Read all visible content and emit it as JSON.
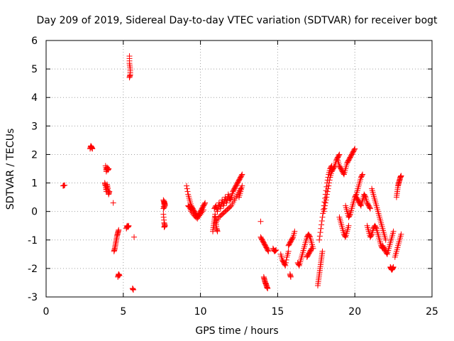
{
  "chart_data": {
    "type": "scatter",
    "title": "Day 209 of 2019, Sidereal Day-to-day VTEC variation (SDTVAR) for receiver bogt",
    "xlabel": "GPS time / hours",
    "ylabel": "SDTVAR / TECUs",
    "xlim": [
      0,
      25
    ],
    "ylim": [
      -3,
      6
    ],
    "xticks": [
      0,
      5,
      10,
      15,
      20,
      25
    ],
    "yticks": [
      -3,
      -2,
      -1,
      0,
      1,
      2,
      3,
      4,
      5,
      6
    ],
    "grid": true,
    "marker": "+",
    "series_color": "#ff0000",
    "segments": [
      {
        "x": [
          1.1,
          1.2
        ],
        "y": [
          0.9,
          0.92
        ]
      },
      {
        "x": [
          2.85,
          2.9,
          2.95,
          3.0
        ],
        "y": [
          2.2,
          2.3,
          2.25,
          2.2
        ]
      },
      {
        "x": [
          3.85,
          3.9,
          3.95,
          4.0,
          4.05
        ],
        "y": [
          1.6,
          1.4,
          1.55,
          1.45,
          1.5
        ]
      },
      {
        "x": [
          3.8,
          3.85,
          3.9,
          3.95,
          4.0,
          4.05,
          4.1
        ],
        "y": [
          1.0,
          0.9,
          0.7,
          0.95,
          0.8,
          0.6,
          0.7
        ]
      },
      {
        "x": [
          4.35
        ],
        "y": [
          0.3
        ]
      },
      {
        "x": [
          4.4,
          4.45,
          4.5,
          4.55,
          4.6,
          4.65,
          4.7
        ],
        "y": [
          -1.4,
          -1.3,
          -1.15,
          -1.0,
          -0.85,
          -0.75,
          -0.65
        ]
      },
      {
        "x": [
          4.65,
          4.7,
          4.75
        ],
        "y": [
          -2.3,
          -2.2,
          -2.25
        ]
      },
      {
        "x": [
          5.2,
          5.25,
          5.3,
          5.35
        ],
        "y": [
          -0.6,
          -0.5,
          -0.55,
          -0.5
        ]
      },
      {
        "x": [
          5.4,
          5.4,
          5.45,
          5.45,
          5.4
        ],
        "y": [
          5.45,
          5.2,
          5.0,
          4.8,
          4.7
        ]
      },
      {
        "x": [
          5.7
        ],
        "y": [
          -0.9
        ]
      },
      {
        "x": [
          5.6,
          5.65
        ],
        "y": [
          -2.7,
          -2.75
        ]
      },
      {
        "x": [
          7.6,
          7.65,
          7.7,
          7.6,
          7.65,
          7.7
        ],
        "y": [
          0.4,
          0.3,
          0.2,
          0.1,
          0.35,
          0.25
        ]
      },
      {
        "x": [
          7.6,
          7.65,
          7.7,
          7.65
        ],
        "y": [
          -0.1,
          -0.4,
          -0.5,
          -0.55
        ]
      },
      {
        "x": [
          9.1,
          9.2,
          9.3,
          9.4,
          9.5,
          9.6,
          9.7,
          9.8,
          9.9,
          10.0,
          10.1,
          10.2,
          10.3
        ],
        "y": [
          0.9,
          0.6,
          0.4,
          0.2,
          0.1,
          0.0,
          -0.1,
          -0.2,
          -0.1,
          0.0,
          0.1,
          0.2,
          0.3
        ]
      },
      {
        "x": [
          9.2,
          9.3,
          9.4,
          9.6,
          9.8,
          10.0,
          10.2
        ],
        "y": [
          0.2,
          0.15,
          0.0,
          -0.15,
          -0.25,
          -0.1,
          0.05
        ]
      },
      {
        "x": [
          10.8,
          10.85,
          10.9,
          10.95,
          11.0,
          11.05,
          11.1
        ],
        "y": [
          -0.7,
          -0.5,
          -0.3,
          -0.1,
          -0.4,
          -0.6,
          -0.7
        ]
      },
      {
        "x": [
          10.9,
          11.0,
          11.1,
          11.2,
          11.3,
          11.4,
          11.5,
          11.6,
          11.7,
          11.8,
          11.9,
          12.0,
          12.1,
          12.2,
          12.3,
          12.4,
          12.5,
          12.6,
          12.7
        ],
        "y": [
          0.1,
          0.2,
          0.0,
          0.3,
          0.1,
          0.4,
          0.2,
          0.5,
          0.3,
          0.6,
          0.4,
          0.5,
          0.7,
          0.8,
          0.9,
          1.0,
          1.1,
          1.2,
          1.3
        ]
      },
      {
        "x": [
          11.0,
          11.2,
          11.4,
          11.6,
          11.8,
          12.0,
          12.2,
          12.4,
          12.6
        ],
        "y": [
          -0.4,
          -0.2,
          -0.1,
          0.0,
          0.1,
          0.2,
          0.4,
          0.6,
          0.8
        ]
      },
      {
        "x": [
          12.5,
          12.6,
          12.7
        ],
        "y": [
          0.5,
          0.7,
          0.9
        ]
      },
      {
        "x": [
          13.9
        ],
        "y": [
          -0.35
        ]
      },
      {
        "x": [
          13.9,
          14.0,
          14.1,
          14.2,
          14.3,
          14.4
        ],
        "y": [
          -0.9,
          -1.0,
          -1.1,
          -1.2,
          -1.3,
          -1.4
        ]
      },
      {
        "x": [
          14.1,
          14.15,
          14.2,
          14.25,
          14.3,
          14.35
        ],
        "y": [
          -2.3,
          -2.4,
          -2.5,
          -2.55,
          -2.65,
          -2.7
        ]
      },
      {
        "x": [
          14.7,
          14.8,
          14.9
        ],
        "y": [
          -1.3,
          -1.4,
          -1.35
        ]
      },
      {
        "x": [
          15.2,
          15.3,
          15.4,
          15.5,
          15.6,
          15.7
        ],
        "y": [
          -1.5,
          -1.7,
          -1.8,
          -1.9,
          -1.6,
          -1.4
        ]
      },
      {
        "x": [
          15.7,
          15.8,
          15.9,
          16.0,
          16.1
        ],
        "y": [
          -1.2,
          -1.1,
          -1.0,
          -0.9,
          -0.7
        ]
      },
      {
        "x": [
          15.8,
          15.85
        ],
        "y": [
          -2.2,
          -2.3
        ]
      },
      {
        "x": [
          16.3,
          16.4,
          16.5,
          16.6,
          16.7,
          16.8,
          16.9,
          17.0,
          17.1,
          17.2,
          17.3
        ],
        "y": [
          -1.8,
          -1.9,
          -1.7,
          -1.5,
          -1.3,
          -1.1,
          -0.9,
          -0.8,
          -0.9,
          -1.1,
          -1.3
        ]
      },
      {
        "x": [
          16.9,
          17.0,
          17.1,
          17.2
        ],
        "y": [
          -1.6,
          -1.5,
          -1.4,
          -1.3
        ]
      },
      {
        "x": [
          17.6,
          17.65,
          17.7,
          17.75,
          17.8,
          17.85,
          17.9
        ],
        "y": [
          -2.6,
          -2.4,
          -2.2,
          -2.0,
          -1.8,
          -1.6,
          -1.4
        ]
      },
      {
        "x": [
          17.7,
          17.8,
          17.9,
          18.0,
          18.1,
          18.2,
          18.3,
          18.4,
          18.5
        ],
        "y": [
          -1.0,
          -0.6,
          -0.2,
          0.2,
          0.6,
          1.0,
          1.3,
          1.5,
          1.6
        ]
      },
      {
        "x": [
          18.0,
          18.1,
          18.2,
          18.3,
          18.4,
          18.5,
          18.6,
          18.7,
          18.8,
          18.9,
          19.0
        ],
        "y": [
          0.0,
          0.3,
          0.6,
          0.9,
          1.2,
          1.4,
          1.5,
          1.6,
          1.8,
          1.9,
          2.0
        ]
      },
      {
        "x": [
          18.9,
          19.0,
          19.1,
          19.2,
          19.3,
          19.4,
          19.5,
          19.6,
          19.7,
          19.8,
          19.9,
          20.0
        ],
        "y": [
          1.8,
          1.6,
          1.5,
          1.4,
          1.3,
          1.5,
          1.7,
          1.8,
          1.9,
          2.0,
          2.1,
          2.2
        ]
      },
      {
        "x": [
          19.0,
          19.1,
          19.2,
          19.3,
          19.4,
          19.5,
          19.6
        ],
        "y": [
          -0.2,
          -0.4,
          -0.6,
          -0.8,
          -0.9,
          -0.7,
          -0.5
        ]
      },
      {
        "x": [
          19.4,
          19.5,
          19.6,
          19.7,
          19.8,
          19.9,
          20.0,
          20.1,
          20.2,
          20.3,
          20.4,
          20.5
        ],
        "y": [
          0.2,
          0.0,
          -0.2,
          -0.1,
          0.1,
          0.3,
          0.5,
          0.6,
          0.8,
          1.0,
          1.2,
          1.3
        ]
      },
      {
        "x": [
          20.1,
          20.2,
          20.3,
          20.4,
          20.5,
          20.6,
          20.7,
          20.8,
          20.9,
          21.0
        ],
        "y": [
          0.5,
          0.4,
          0.3,
          0.2,
          0.4,
          0.6,
          0.5,
          0.3,
          0.2,
          0.1
        ]
      },
      {
        "x": [
          20.8,
          20.9,
          21.0,
          21.1,
          21.2,
          21.3,
          21.4,
          21.5,
          21.6,
          21.7,
          21.8
        ],
        "y": [
          -0.5,
          -0.7,
          -0.9,
          -0.8,
          -0.6,
          -0.5,
          -0.6,
          -0.8,
          -1.0,
          -1.2,
          -1.3
        ]
      },
      {
        "x": [
          21.1,
          21.2,
          21.3,
          21.4,
          21.5,
          21.6,
          21.7,
          21.8,
          21.9,
          22.0
        ],
        "y": [
          0.8,
          0.6,
          0.4,
          0.2,
          0.0,
          -0.2,
          -0.4,
          -0.6,
          -0.8,
          -1.0
        ]
      },
      {
        "x": [
          21.8,
          21.9,
          22.0,
          22.1,
          22.2,
          22.3,
          22.4,
          22.5
        ],
        "y": [
          -1.2,
          -1.3,
          -1.4,
          -1.5,
          -1.3,
          -1.1,
          -0.9,
          -0.7
        ]
      },
      {
        "x": [
          22.3,
          22.35,
          22.4,
          22.45,
          22.5
        ],
        "y": [
          -1.95,
          -2.0,
          -2.05,
          -2.0,
          -1.95
        ]
      },
      {
        "x": [
          22.7,
          22.75,
          22.8,
          22.85,
          22.9,
          22.95,
          23.0
        ],
        "y": [
          0.5,
          0.7,
          0.9,
          1.0,
          1.1,
          1.2,
          1.25
        ]
      },
      {
        "x": [
          22.6,
          22.7,
          22.8,
          22.9,
          23.0
        ],
        "y": [
          -1.6,
          -1.4,
          -1.2,
          -1.0,
          -0.8
        ]
      }
    ]
  }
}
